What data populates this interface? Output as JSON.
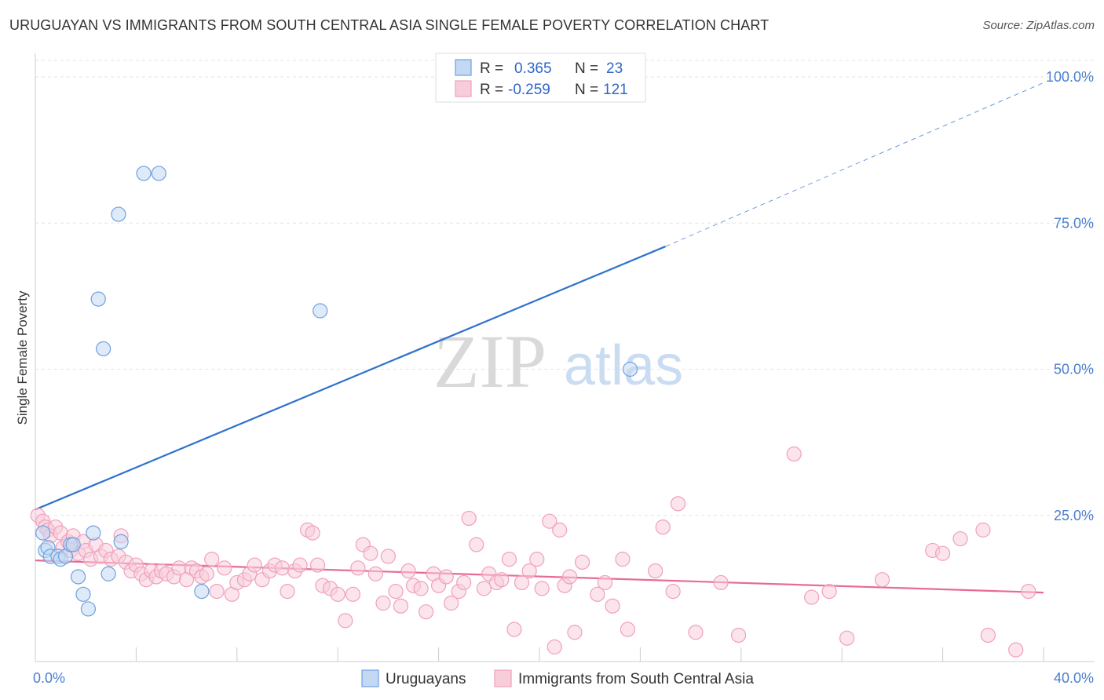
{
  "chart_data": {
    "type": "scatter",
    "title": "URUGUAYAN VS IMMIGRANTS FROM SOUTH CENTRAL ASIA SINGLE FEMALE POVERTY CORRELATION CHART",
    "source": "Source: ZipAtlas.com",
    "xlabel": "",
    "ylabel": "Single Female Poverty",
    "xlim": [
      0,
      40
    ],
    "ylim": [
      0,
      100
    ],
    "x_tick_labels": [
      "0.0%",
      "40.0%"
    ],
    "y_ticks": [
      {
        "value": 25,
        "label": "25.0%"
      },
      {
        "value": 50,
        "label": "50.0%"
      },
      {
        "value": 75,
        "label": "75.0%"
      },
      {
        "value": 100,
        "label": "100.0%"
      }
    ],
    "watermark": {
      "zip": "ZIP",
      "atlas": "atlas"
    },
    "legend_top": [
      {
        "r_label": "R =",
        "r_value": "0.365",
        "n_label": "N =",
        "n_value": "23"
      },
      {
        "r_label": "R =",
        "r_value": "-0.259",
        "n_label": "N =",
        "n_value": "121"
      }
    ],
    "series": [
      {
        "name": "Uruguayans",
        "color": "#6fa0e0",
        "fill": "#c3d8f3",
        "line_color": "#2f72cc",
        "trend": {
          "x0": 0,
          "y0": 26,
          "x1": 25,
          "y1": 71,
          "dash_to_x": 40,
          "dash_to_y": 99
        },
        "points": [
          [
            0.3,
            22.0
          ],
          [
            0.4,
            19.0
          ],
          [
            0.5,
            19.5
          ],
          [
            0.6,
            18.0
          ],
          [
            0.9,
            18.0
          ],
          [
            1.0,
            17.5
          ],
          [
            1.2,
            18.0
          ],
          [
            1.4,
            20.0
          ],
          [
            1.5,
            20.0
          ],
          [
            1.7,
            14.5
          ],
          [
            1.9,
            11.5
          ],
          [
            2.1,
            9.0
          ],
          [
            2.3,
            22.0
          ],
          [
            2.5,
            62.0
          ],
          [
            2.7,
            53.5
          ],
          [
            2.9,
            15.0
          ],
          [
            3.3,
            76.5
          ],
          [
            3.4,
            20.5
          ],
          [
            4.3,
            83.5
          ],
          [
            4.9,
            83.5
          ],
          [
            6.6,
            12.0
          ],
          [
            11.3,
            60.0
          ],
          [
            23.6,
            50.0
          ]
        ]
      },
      {
        "name": "Immigrants from South Central Asia",
        "color": "#f0a0bc",
        "fill": "#f8cdda",
        "line_color": "#e86a96",
        "trend": {
          "x0": 0,
          "y0": 17.3,
          "x1": 40,
          "y1": 11.8
        },
        "points": [
          [
            0.1,
            25.0
          ],
          [
            0.3,
            24.0
          ],
          [
            0.4,
            23.0
          ],
          [
            0.5,
            22.5
          ],
          [
            0.6,
            21.5
          ],
          [
            0.8,
            23.0
          ],
          [
            1.0,
            22.0
          ],
          [
            1.1,
            19.5
          ],
          [
            1.3,
            20.5
          ],
          [
            1.4,
            19.0
          ],
          [
            1.5,
            21.5
          ],
          [
            1.7,
            18.5
          ],
          [
            1.9,
            20.5
          ],
          [
            2.0,
            19.0
          ],
          [
            2.2,
            17.5
          ],
          [
            2.4,
            20.0
          ],
          [
            2.6,
            18.0
          ],
          [
            2.8,
            19.0
          ],
          [
            3.0,
            17.5
          ],
          [
            3.3,
            18.0
          ],
          [
            3.4,
            21.5
          ],
          [
            3.6,
            17.0
          ],
          [
            3.8,
            15.5
          ],
          [
            4.0,
            16.5
          ],
          [
            4.2,
            15.0
          ],
          [
            4.4,
            14.0
          ],
          [
            4.6,
            15.5
          ],
          [
            4.8,
            14.5
          ],
          [
            5.0,
            15.5
          ],
          [
            5.2,
            15.0
          ],
          [
            5.5,
            14.5
          ],
          [
            5.7,
            16.0
          ],
          [
            6.0,
            14.0
          ],
          [
            6.2,
            16.0
          ],
          [
            6.4,
            15.5
          ],
          [
            6.6,
            14.5
          ],
          [
            6.8,
            15.0
          ],
          [
            7.0,
            17.5
          ],
          [
            7.2,
            12.0
          ],
          [
            7.5,
            16.0
          ],
          [
            7.8,
            11.5
          ],
          [
            8.0,
            13.5
          ],
          [
            8.3,
            14.0
          ],
          [
            8.5,
            15.0
          ],
          [
            8.7,
            16.5
          ],
          [
            9.0,
            14.0
          ],
          [
            9.3,
            15.5
          ],
          [
            9.5,
            16.5
          ],
          [
            9.8,
            16.0
          ],
          [
            10.0,
            12.0
          ],
          [
            10.3,
            15.5
          ],
          [
            10.5,
            16.5
          ],
          [
            10.8,
            22.5
          ],
          [
            11.0,
            22.0
          ],
          [
            11.2,
            16.5
          ],
          [
            11.4,
            13.0
          ],
          [
            11.7,
            12.5
          ],
          [
            12.0,
            11.5
          ],
          [
            12.3,
            7.0
          ],
          [
            12.6,
            11.5
          ],
          [
            12.8,
            16.0
          ],
          [
            13.0,
            20.0
          ],
          [
            13.3,
            18.5
          ],
          [
            13.5,
            15.0
          ],
          [
            13.8,
            10.0
          ],
          [
            14.0,
            18.0
          ],
          [
            14.3,
            12.0
          ],
          [
            14.5,
            9.5
          ],
          [
            14.8,
            15.5
          ],
          [
            15.0,
            13.0
          ],
          [
            15.3,
            12.5
          ],
          [
            15.5,
            8.5
          ],
          [
            15.8,
            15.0
          ],
          [
            16.0,
            13.0
          ],
          [
            16.3,
            14.5
          ],
          [
            16.5,
            10.0
          ],
          [
            16.8,
            12.0
          ],
          [
            17.0,
            13.5
          ],
          [
            17.2,
            24.5
          ],
          [
            17.5,
            20.0
          ],
          [
            17.8,
            12.5
          ],
          [
            18.0,
            15.0
          ],
          [
            18.3,
            13.5
          ],
          [
            18.5,
            14.0
          ],
          [
            18.8,
            17.5
          ],
          [
            19.0,
            5.5
          ],
          [
            19.3,
            13.5
          ],
          [
            19.6,
            15.5
          ],
          [
            19.9,
            17.5
          ],
          [
            20.1,
            12.5
          ],
          [
            20.4,
            24.0
          ],
          [
            20.6,
            2.5
          ],
          [
            20.8,
            22.5
          ],
          [
            21.0,
            13.0
          ],
          [
            21.2,
            14.5
          ],
          [
            21.4,
            5.0
          ],
          [
            21.7,
            17.0
          ],
          [
            22.3,
            11.5
          ],
          [
            22.6,
            13.5
          ],
          [
            22.9,
            9.5
          ],
          [
            23.3,
            17.5
          ],
          [
            23.5,
            5.5
          ],
          [
            24.6,
            15.5
          ],
          [
            24.9,
            23.0
          ],
          [
            25.3,
            12.0
          ],
          [
            25.5,
            27.0
          ],
          [
            26.2,
            5.0
          ],
          [
            27.2,
            13.5
          ],
          [
            27.9,
            4.5
          ],
          [
            30.1,
            35.5
          ],
          [
            30.8,
            11.0
          ],
          [
            31.5,
            12.0
          ],
          [
            32.2,
            4.0
          ],
          [
            33.6,
            14.0
          ],
          [
            35.6,
            19.0
          ],
          [
            36.0,
            18.5
          ],
          [
            36.7,
            21.0
          ],
          [
            37.6,
            22.5
          ],
          [
            37.8,
            4.5
          ],
          [
            38.9,
            2.0
          ],
          [
            39.4,
            12.0
          ]
        ]
      }
    ]
  }
}
